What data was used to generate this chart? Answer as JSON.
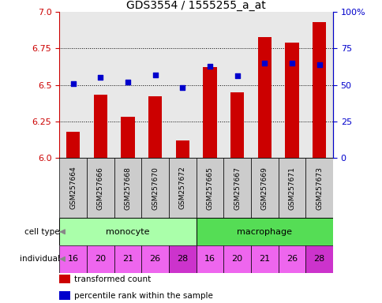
{
  "title": "GDS3554 / 1555255_a_at",
  "samples": [
    "GSM257664",
    "GSM257666",
    "GSM257668",
    "GSM257670",
    "GSM257672",
    "GSM257665",
    "GSM257667",
    "GSM257669",
    "GSM257671",
    "GSM257673"
  ],
  "transformed_count": [
    6.18,
    6.43,
    6.28,
    6.42,
    6.12,
    6.62,
    6.45,
    6.83,
    6.79,
    6.93
  ],
  "percentile_rank": [
    51,
    55,
    52,
    57,
    48,
    63,
    56,
    65,
    65,
    64
  ],
  "ylim_left": [
    6.0,
    7.0
  ],
  "ylim_right": [
    0,
    100
  ],
  "yticks_left": [
    6.0,
    6.25,
    6.5,
    6.75,
    7.0
  ],
  "yticks_right": [
    0,
    25,
    50,
    75,
    100
  ],
  "bar_color": "#cc0000",
  "dot_color": "#0000cc",
  "individuals": [
    16,
    20,
    21,
    26,
    28,
    16,
    20,
    21,
    26,
    28
  ],
  "individual_color": "#ee66ee",
  "highlight_indices": [
    4,
    9
  ],
  "highlight_color": "#cc33cc",
  "mono_color": "#aaffaa",
  "macro_color": "#55dd55",
  "sample_box_color": "#cccccc",
  "legend_red": "transformed count",
  "legend_blue": "percentile rank within the sample",
  "background_color": "#ffffff",
  "plot_bg": "#e8e8e8"
}
